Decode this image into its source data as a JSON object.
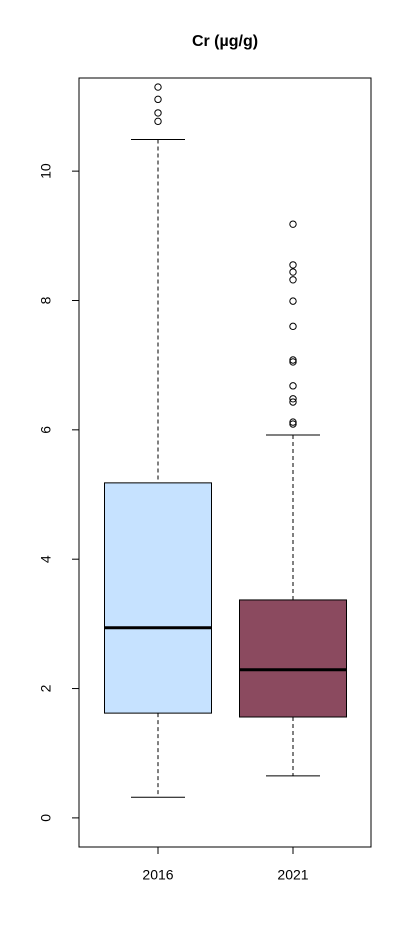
{
  "chart_data": {
    "type": "box",
    "title": "Cr (µg/g)",
    "categories": [
      "2016",
      "2021"
    ],
    "series": [
      {
        "color": "#c6e2ff",
        "whisker_low": 0.32,
        "q1": 1.62,
        "median": 2.94,
        "q3": 5.18,
        "whisker_high": 10.49,
        "outliers": [
          11.3,
          11.11,
          10.9,
          10.77
        ]
      },
      {
        "color": "#8b4a5f",
        "whisker_low": 0.65,
        "q1": 1.56,
        "median": 2.29,
        "q3": 3.37,
        "whisker_high": 5.92,
        "outliers": [
          9.18,
          8.55,
          8.44,
          8.32,
          7.99,
          7.6,
          7.08,
          7.05,
          6.68,
          6.48,
          6.43,
          6.12,
          6.09
        ]
      }
    ],
    "ylim": [
      -0.45,
      11.44
    ],
    "yticks": [
      0,
      2,
      4,
      6,
      8,
      10
    ]
  }
}
